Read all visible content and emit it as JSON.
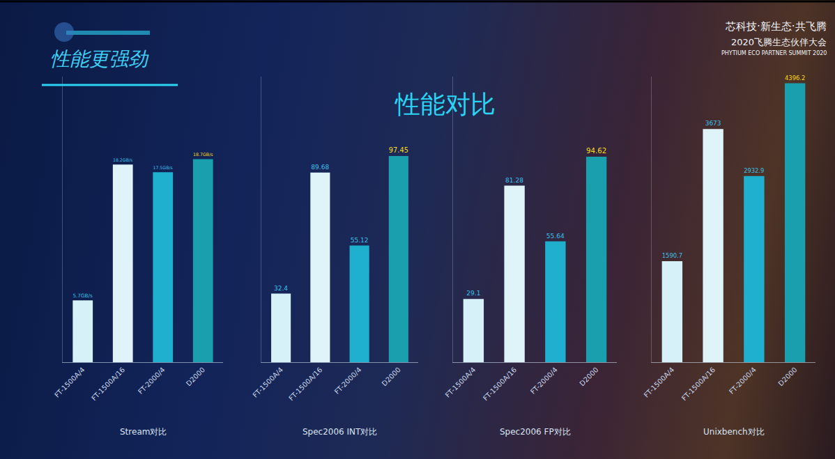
{
  "slide": {
    "heading": "性能更强劲",
    "title": "性能对比",
    "event": [
      "芯科技·新生态·共飞腾",
      "2020飞腾生态伙伴大会",
      "PHYTIUM ECO PARTNER SUMMIT 2020"
    ]
  },
  "chart_data": [
    {
      "type": "bar",
      "title": "Stream对比",
      "categories": [
        "FT-1500A/4",
        "FT-1500A/16",
        "FT-2000/4",
        "D2000"
      ],
      "values": [
        5.7,
        18.2,
        17.5,
        18.7
      ],
      "value_labels": [
        "5.7GB/s",
        "18.2GB/s",
        "17.5GB/s",
        "18.7GB/s"
      ],
      "colors": [
        "#d6f1f7",
        "#dff4f8",
        "#1fb0d0",
        "#1a9fae"
      ],
      "ylim": [
        0,
        26.3
      ],
      "data_labels": true,
      "tick_labels": "x",
      "grid": false
    },
    {
      "type": "bar",
      "title": "Spec2006 INT对比",
      "categories": [
        "FT-1500A/4",
        "FT-1500A/16",
        "FT-2000/4",
        "D2000"
      ],
      "values": [
        32.4,
        89.68,
        55.12,
        97.45
      ],
      "colors": [
        "#d6f1f7",
        "#dff4f8",
        "#1fb0d0",
        "#1a9fae"
      ],
      "ylim": [
        0,
        135
      ],
      "data_labels": true,
      "tick_labels": "x",
      "grid": false
    },
    {
      "type": "bar",
      "title": "Spec2006 FP对比",
      "categories": [
        "FT-1500A/4",
        "FT-1500A/16",
        "FT-2000/4",
        "D2000"
      ],
      "values": [
        29.1,
        81.28,
        55.64,
        94.62
      ],
      "colors": [
        "#d6f1f7",
        "#dff4f8",
        "#1fb0d0",
        "#1a9fae"
      ],
      "ylim": [
        0,
        131.5
      ],
      "data_labels": true,
      "tick_labels": "x",
      "grid": false
    },
    {
      "type": "bar",
      "title": "Unixbench对比",
      "categories": [
        "FT-1500A/4",
        "FT-1500A/16",
        "FT-2000/4",
        "D2000"
      ],
      "values": [
        1590.7,
        3673,
        2932.9,
        4396.2
      ],
      "colors": [
        "#d6f1f7",
        "#dff4f8",
        "#1fb0d0",
        "#1a9fae"
      ],
      "ylim": [
        0,
        4500
      ],
      "data_labels": true,
      "tick_labels": "x",
      "grid": false
    }
  ]
}
